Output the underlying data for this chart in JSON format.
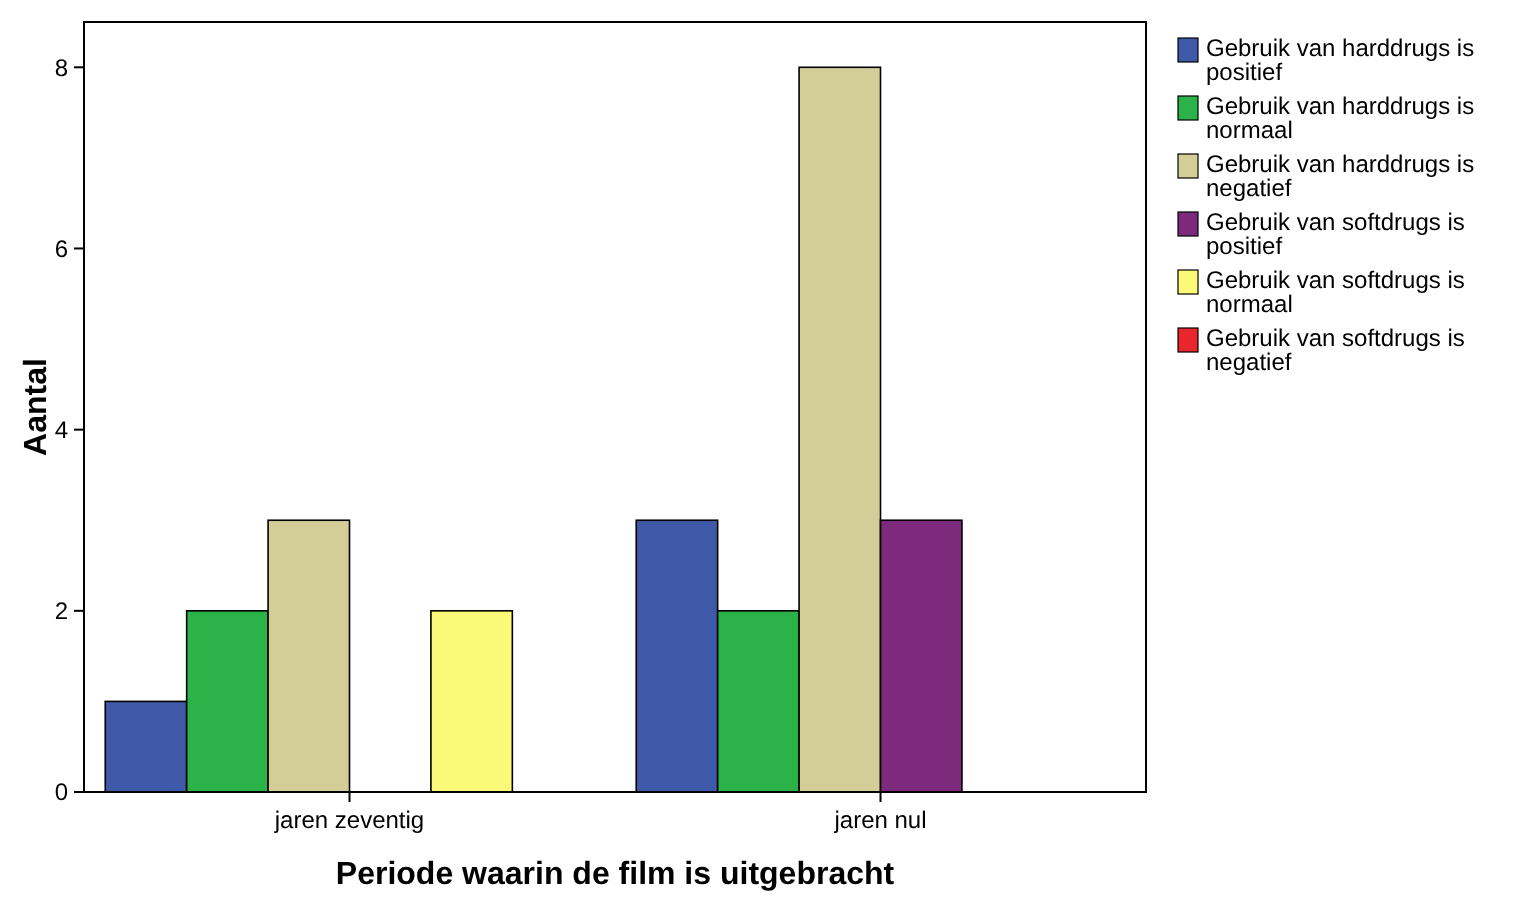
{
  "chart_data": {
    "type": "bar",
    "xlabel": "Periode waarin de film is uitgebracht",
    "ylabel": "Aantal",
    "categories": [
      "jaren zeventig",
      "jaren nul"
    ],
    "series": [
      {
        "name": "Gebruik van harddrugs is positief",
        "color": "#3e59a8",
        "values": [
          1,
          3
        ]
      },
      {
        "name": "Gebruik van harddrugs is normaal",
        "color": "#2bb34a",
        "values": [
          2,
          2
        ]
      },
      {
        "name": "Gebruik van harddrugs is negatief",
        "color": "#d3cd98",
        "values": [
          3,
          8
        ]
      },
      {
        "name": "Gebruik van softdrugs is positief",
        "color": "#7d2a7d",
        "values": [
          0,
          3
        ]
      },
      {
        "name": "Gebruik van softdrugs is normaal",
        "color": "#fafa78",
        "values": [
          2,
          0
        ]
      },
      {
        "name": "Gebruik van softdrugs is negatief",
        "color": "#e8262b",
        "values": [
          0,
          0
        ]
      }
    ],
    "ylim": [
      0,
      8.5
    ],
    "yticks": [
      0,
      2,
      4,
      6,
      8
    ],
    "grid": false,
    "legend": "right"
  }
}
